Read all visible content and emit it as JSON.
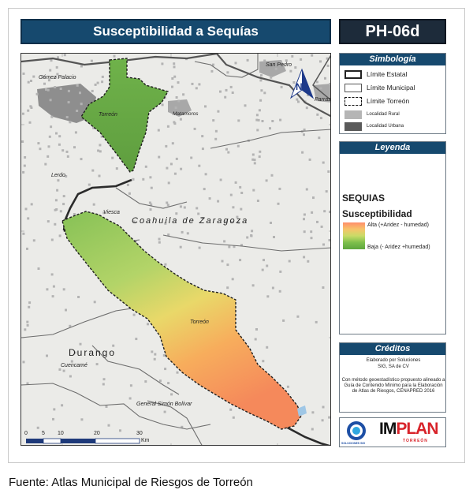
{
  "title": "Susceptibilidad a Sequías",
  "code": "PH-06d",
  "source_caption": "Fuente: Atlas Municipal de Riesgos de Torreón",
  "colors": {
    "header_blue": "#16496e",
    "code_box": "#1d2b3a",
    "high": "#ff8f6b",
    "mid": "#f0d46a",
    "low": "#5ea63e",
    "urban": "#5a5a5a",
    "rural": "#b5b5b5"
  },
  "map": {
    "places": {
      "gomez_palacio": "Gómez Palacio",
      "torreon_north": "Torreón",
      "matamoros": "Matamoros",
      "san_pedro": "San Pedro",
      "parras": "Parras",
      "lerdo": "Lerdo",
      "viesca": "Viesca",
      "coahuila": "Coahuila de Zaragoza",
      "torreon_south": "Torreón",
      "durango": "Durango",
      "cuencame": "Cuencamé",
      "simon_bolivar": "General Simón Bolívar"
    },
    "scale": {
      "ticks": [
        "0",
        "5",
        "10",
        "20",
        "30"
      ],
      "unit": "Km"
    },
    "north_icon": "north-arrow-icon"
  },
  "simbologia": {
    "title": "Simbología",
    "items": [
      {
        "label": "Límite Estatal",
        "icon": "state-boundary-icon"
      },
      {
        "label": "Límite Municipal",
        "icon": "municipal-boundary-icon"
      },
      {
        "label": "Límite Torreón",
        "icon": "torreon-boundary-icon"
      },
      {
        "label": "Localidad Rural",
        "icon": "rural-locality-icon"
      },
      {
        "label": "Localidad Urbana",
        "icon": "urban-locality-icon"
      }
    ]
  },
  "leyenda": {
    "title": "Leyenda",
    "heading1": "SEQUIAS",
    "heading2": "Susceptibilidad",
    "high_label": "Alta (+Aridez - humedad)",
    "low_label": "Baja (- Aridez +humedad)",
    "ramp": [
      0.0,
      1.0
    ]
  },
  "creditos": {
    "title": "Créditos",
    "line1": "Elaborado por Soluciones",
    "line2": "SIG, SA de CV",
    "text": "Con método geoestadístico propuesto alineado a Guía de Contenido Mínimo para la Elaboración de Atlas de Riesgos, CENAPRED 2016"
  },
  "logos": {
    "left_label": "SOLUCIONES SIG",
    "main_im": "IM",
    "main_plan": "PLAN",
    "sub": "TORREÓN"
  }
}
